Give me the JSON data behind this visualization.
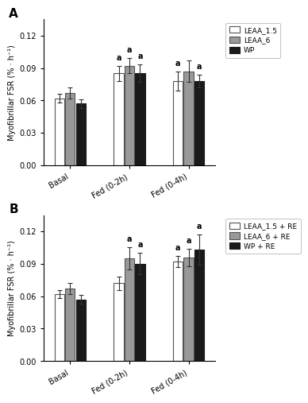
{
  "panel_A": {
    "groups": [
      "Basal",
      "Fed (0-2h)",
      "Fed (0-4h)"
    ],
    "series": {
      "LEAA_1.5": {
        "values": [
          0.062,
          0.085,
          0.078
        ],
        "errors": [
          0.004,
          0.007,
          0.009
        ],
        "color": "#ffffff",
        "edgecolor": "#555555"
      },
      "LEAA_6": {
        "values": [
          0.067,
          0.092,
          0.087
        ],
        "errors": [
          0.005,
          0.007,
          0.01
        ],
        "color": "#999999",
        "edgecolor": "#555555"
      },
      "WP": {
        "values": [
          0.057,
          0.085,
          0.078
        ],
        "errors": [
          0.004,
          0.008,
          0.006
        ],
        "color": "#1a1a1a",
        "edgecolor": "#1a1a1a"
      }
    },
    "significance": {
      "Fed (0-2h)": [
        true,
        true,
        true
      ],
      "Fed (0-4h)": [
        true,
        false,
        true
      ]
    },
    "legend_labels": [
      "LEAA_1.5",
      "LEAA_6",
      "WP"
    ]
  },
  "panel_B": {
    "groups": [
      "Basal",
      "Fed (0-2h)",
      "Fed (0-4h)"
    ],
    "series": {
      "LEAA_1.5 + RE": {
        "values": [
          0.062,
          0.072,
          0.092
        ],
        "errors": [
          0.004,
          0.006,
          0.005
        ],
        "color": "#ffffff",
        "edgecolor": "#555555"
      },
      "LEAA_6 + RE": {
        "values": [
          0.067,
          0.095,
          0.096
        ],
        "errors": [
          0.005,
          0.01,
          0.008
        ],
        "color": "#999999",
        "edgecolor": "#555555"
      },
      "WP + RE": {
        "values": [
          0.057,
          0.09,
          0.103
        ],
        "errors": [
          0.004,
          0.01,
          0.014
        ],
        "color": "#1a1a1a",
        "edgecolor": "#1a1a1a"
      }
    },
    "significance": {
      "Fed (0-2h)": [
        false,
        true,
        true
      ],
      "Fed (0-4h)": [
        true,
        true,
        true
      ]
    },
    "legend_labels": [
      "LEAA_1.5 + RE",
      "LEAA_6 + RE",
      "WP + RE"
    ]
  },
  "ylabel": "Myofibrillar FSR (% · h⁻¹)",
  "ylim": [
    0.0,
    0.135
  ],
  "yticks": [
    0.0,
    0.03,
    0.06,
    0.09,
    0.12
  ],
  "bar_width": 0.18,
  "group_positions": [
    0.5,
    1.5,
    2.5
  ],
  "background_color": "#ffffff",
  "linewidth": 0.8,
  "capsize": 2.5
}
